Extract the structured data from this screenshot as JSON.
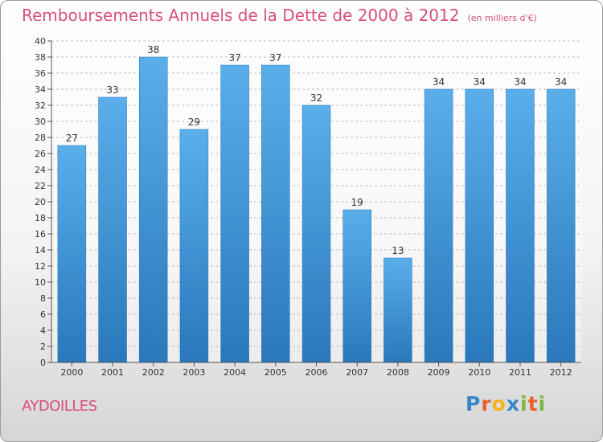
{
  "title": "Remboursements Annuels de la Dette de 2000 à 2012",
  "unit": "(en milliers d'€)",
  "commune": "AYDOILLES",
  "logo": {
    "letters": [
      "P",
      "r",
      "o",
      "x",
      "i",
      "t",
      "i"
    ],
    "text": "Proxiti"
  },
  "colors": {
    "bar": "#4a9fe0",
    "title": "#d94f7a",
    "grid": "#bdbdbd"
  },
  "chart_data": {
    "type": "bar",
    "title": "Remboursements Annuels de la Dette de 2000 à 2012",
    "categories": [
      "2000",
      "2001",
      "2002",
      "2003",
      "2004",
      "2005",
      "2006",
      "2007",
      "2008",
      "2009",
      "2010",
      "2011",
      "2012"
    ],
    "values": [
      27,
      33,
      38,
      29,
      37,
      37,
      32,
      19,
      13,
      34,
      34,
      34,
      34
    ],
    "ylim": [
      0,
      40
    ],
    "yticks": [
      0,
      2,
      4,
      6,
      8,
      10,
      12,
      14,
      16,
      18,
      20,
      22,
      24,
      26,
      28,
      30,
      32,
      34,
      36,
      38,
      40
    ],
    "grid": true,
    "xlabel": "",
    "ylabel": ""
  }
}
